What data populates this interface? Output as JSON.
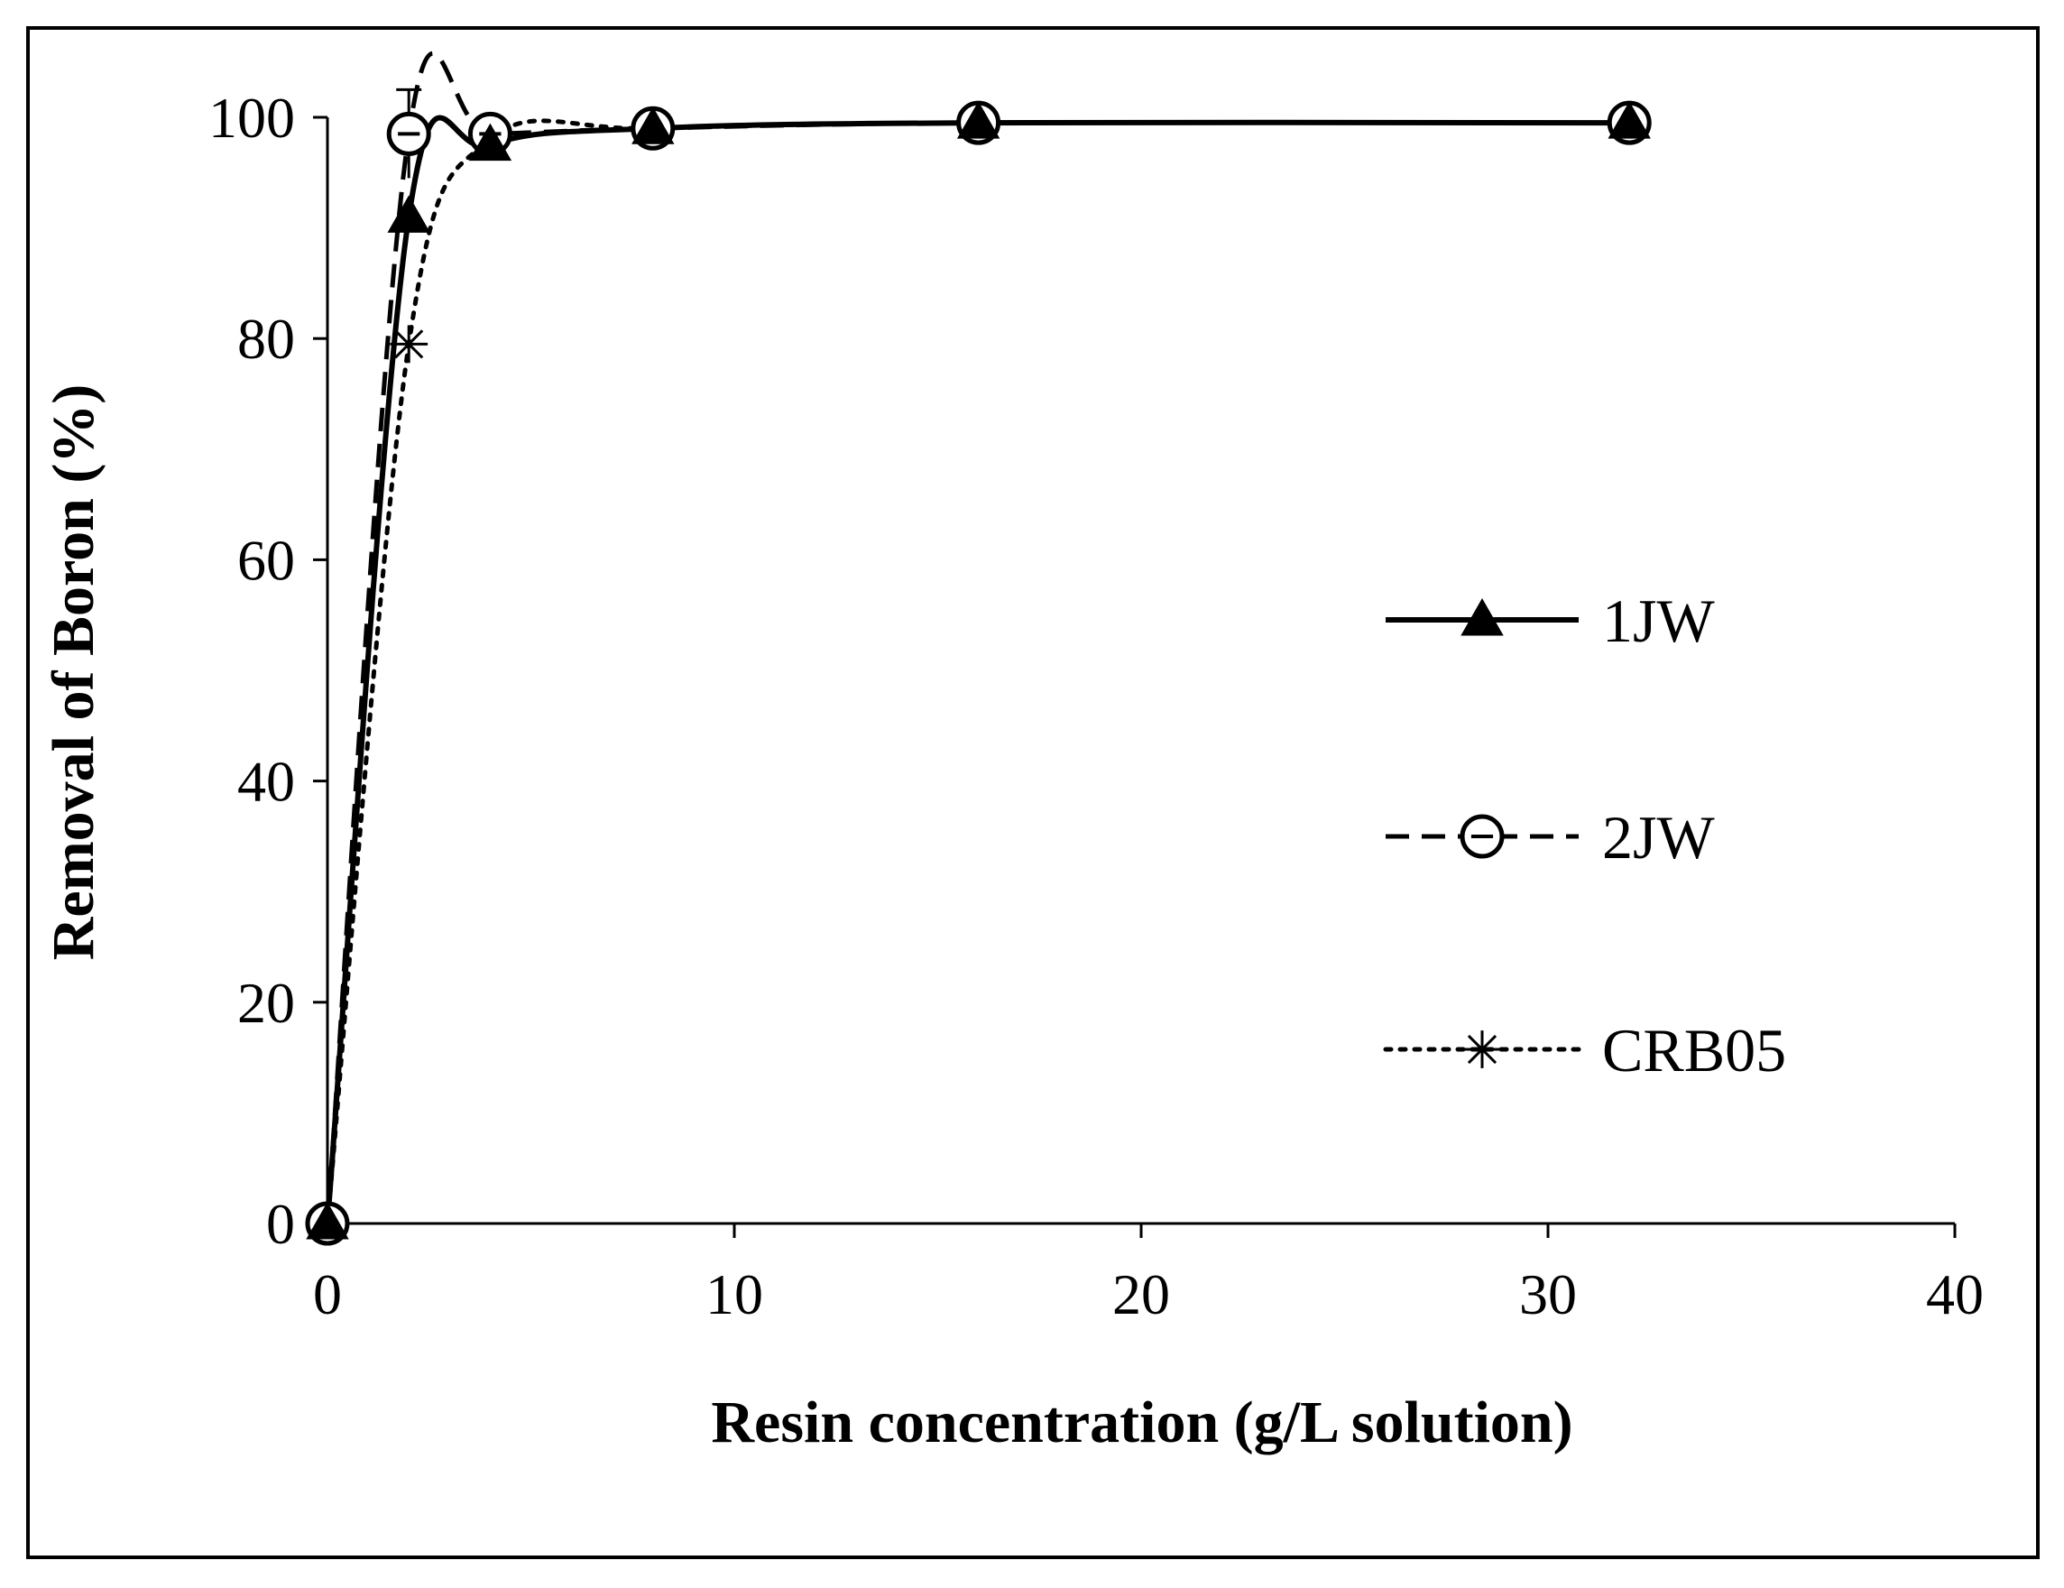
{
  "chart_data": {
    "type": "line",
    "title": "",
    "xlabel": "Resin concentration (g/L solution)",
    "ylabel": "Removal of Boron (%)",
    "xlim": [
      0,
      40
    ],
    "ylim": [
      0,
      100
    ],
    "xticks": [
      0,
      10,
      20,
      30,
      40
    ],
    "yticks": [
      0,
      20,
      40,
      60,
      80,
      100
    ],
    "grid": false,
    "legend_position": "right",
    "series": [
      {
        "name": "1JW",
        "line_style": "solid",
        "marker": "filled-triangle",
        "color": "#000000",
        "x": [
          0,
          2,
          4,
          8,
          16,
          32
        ],
        "y": [
          0,
          91,
          97.5,
          99,
          99.5,
          99.5
        ]
      },
      {
        "name": "2JW",
        "line_style": "dashed",
        "marker": "open-circle",
        "color": "#000000",
        "x": [
          0,
          2,
          4,
          8,
          16,
          32
        ],
        "y": [
          0,
          98.5,
          98.5,
          99,
          99.5,
          99.5
        ],
        "error_bar_2": 4
      },
      {
        "name": "CRB05",
        "line_style": "dotted",
        "marker": "asterisk",
        "color": "#000000",
        "x": [
          0,
          2,
          4,
          8,
          16,
          32
        ],
        "y": [
          0,
          79.5,
          98,
          99,
          99.5,
          99.5
        ]
      }
    ]
  }
}
